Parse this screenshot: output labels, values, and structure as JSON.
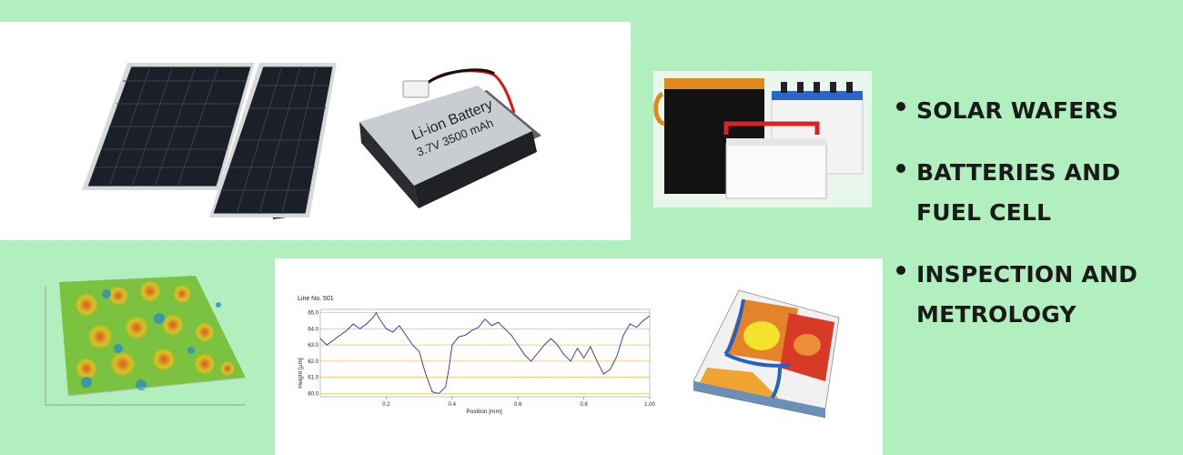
{
  "bullets": [
    {
      "label": "SOLAR WAFERS"
    },
    {
      "label": "BATTERIES AND FUEL CELL"
    },
    {
      "label": "INSPECTION AND METROLOGY"
    }
  ],
  "battery_label": {
    "line1": "Li-ion Battery",
    "line2": "3.7V 3500 mAh"
  },
  "colors": {
    "background": "#b1efbe",
    "panel": "#ffffff",
    "text": "#1a1a1a",
    "profile_line": "#2b2bb0",
    "grid": "#f0b040"
  },
  "chart_data": {
    "type": "line",
    "title": "Line No. 501",
    "xlabel": "Position [mm]",
    "ylabel": "Height [µm]",
    "xlim": [
      0,
      1.0
    ],
    "ylim": [
      59.8,
      65.2
    ],
    "x_ticks": [
      "0.2",
      "0.4",
      "0.6",
      "0.8",
      "1.00"
    ],
    "y_ticks": [
      "65.0",
      "64.0",
      "63.0",
      "62.0",
      "61.0",
      "60.0"
    ],
    "series": [
      {
        "x": [
          0.0,
          0.02,
          0.04,
          0.06,
          0.08,
          0.1,
          0.12,
          0.14,
          0.16,
          0.17,
          0.18,
          0.2,
          0.22,
          0.24,
          0.26,
          0.28,
          0.3,
          0.32,
          0.34,
          0.36,
          0.38,
          0.39,
          0.4,
          0.42,
          0.44,
          0.46,
          0.48,
          0.5,
          0.52,
          0.54,
          0.56,
          0.58,
          0.6,
          0.62,
          0.64,
          0.66,
          0.68,
          0.7,
          0.72,
          0.74,
          0.76,
          0.78,
          0.8,
          0.82,
          0.84,
          0.86,
          0.88,
          0.9,
          0.92,
          0.94,
          0.96,
          0.98,
          1.0
        ],
        "y": [
          63.4,
          63.0,
          63.3,
          63.6,
          63.9,
          64.3,
          64.0,
          64.3,
          64.7,
          65.0,
          64.6,
          64.0,
          63.8,
          64.2,
          63.6,
          63.0,
          62.6,
          61.2,
          60.1,
          60.0,
          60.4,
          61.5,
          63.0,
          63.5,
          63.6,
          63.9,
          64.1,
          64.6,
          64.2,
          64.4,
          64.0,
          63.6,
          63.0,
          62.4,
          62.0,
          62.5,
          63.0,
          63.4,
          63.0,
          62.4,
          62.0,
          62.8,
          62.2,
          62.9,
          62.0,
          61.2,
          61.5,
          62.3,
          63.6,
          64.3,
          64.1,
          64.5,
          64.8
        ]
      }
    ]
  }
}
